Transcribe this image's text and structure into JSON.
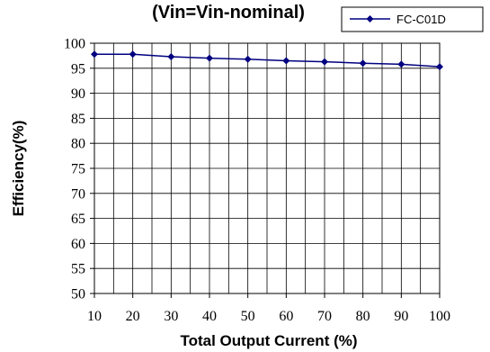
{
  "chart_data": {
    "type": "line",
    "title": "(Vin=Vin-nominal)",
    "xlabel": "Total Output Current (%)",
    "ylabel": "Efficiency(%)",
    "x": [
      10,
      20,
      30,
      40,
      50,
      60,
      70,
      80,
      90,
      100
    ],
    "xlim": [
      10,
      100
    ],
    "ylim": [
      50,
      100
    ],
    "x_ticks": [
      "10",
      "20",
      "30",
      "40",
      "50",
      "60",
      "70",
      "80",
      "90",
      "100"
    ],
    "y_ticks": [
      "100",
      "95",
      "90",
      "85",
      "80",
      "75",
      "70",
      "65",
      "60",
      "55",
      "50"
    ],
    "grid": true,
    "legend_position": "top-right",
    "series": [
      {
        "name": "FC-C01D",
        "color": "#000080",
        "marker": "diamond",
        "values": [
          97.8,
          97.8,
          97.3,
          97.0,
          96.8,
          96.5,
          96.3,
          96.0,
          95.8,
          95.3
        ]
      }
    ]
  }
}
